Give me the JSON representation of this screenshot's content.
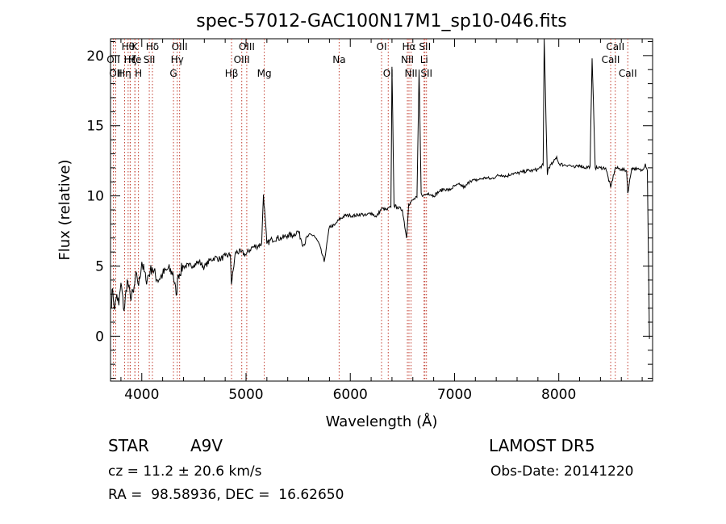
{
  "chart_data": {
    "type": "line",
    "title": "spec-57012-GAC100N17M1_sp10-046.fits",
    "xlabel": "Wavelength (Å)",
    "ylabel": "Flux (relative)",
    "xlim": [
      3700,
      8900
    ],
    "ylim": [
      -3.2,
      21.2
    ],
    "xticks": [
      {
        "value": 4000,
        "label": "4000"
      },
      {
        "value": 5000,
        "label": "5000"
      },
      {
        "value": 6000,
        "label": "6000"
      },
      {
        "value": 7000,
        "label": "7000"
      },
      {
        "value": 8000,
        "label": "8000"
      }
    ],
    "yticks": [
      {
        "value": 0,
        "label": "0"
      },
      {
        "value": 5,
        "label": "5"
      },
      {
        "value": 10,
        "label": "10"
      },
      {
        "value": 15,
        "label": "15"
      },
      {
        "value": 20,
        "label": "20"
      }
    ],
    "grid": false,
    "line_color": "#000000",
    "marker_color": "#c0392b",
    "series": [
      {
        "x": [
          3705,
          3720,
          3740,
          3760,
          3780,
          3800,
          3830,
          3860,
          3890,
          3920,
          3950,
          3970,
          4000,
          4040,
          4080,
          4100,
          4150,
          4200,
          4250,
          4300,
          4330,
          4350,
          4400,
          4450,
          4500,
          4550,
          4600,
          4650,
          4700,
          4750,
          4800,
          4850,
          4860,
          4900,
          4950,
          5000,
          5050,
          5100,
          5150,
          5167,
          5200,
          5250,
          5300,
          5350,
          5400,
          5450,
          5500,
          5550,
          5600,
          5650,
          5700,
          5750,
          5800,
          5850,
          5890,
          5950,
          6000,
          6050,
          6100,
          6150,
          6200,
          6250,
          6300,
          6350,
          6390,
          6400,
          6420,
          6450,
          6500,
          6540,
          6560,
          6600,
          6640,
          6660,
          6680,
          6700,
          6750,
          6800,
          6850,
          6900,
          6950,
          7000,
          7050,
          7100,
          7150,
          7200,
          7250,
          7300,
          7350,
          7400,
          7450,
          7500,
          7550,
          7600,
          7650,
          7700,
          7750,
          7800,
          7850,
          7860,
          7890,
          7900,
          7950,
          7980,
          8000,
          8050,
          8100,
          8150,
          8200,
          8250,
          8300,
          8320,
          8350,
          8400,
          8450,
          8498,
          8542,
          8600,
          8650,
          8662,
          8700,
          8750,
          8800,
          8830,
          8850,
          8870
        ],
        "y": [
          2.0,
          3.4,
          1.9,
          3.0,
          2.2,
          3.8,
          1.8,
          4.0,
          2.8,
          3.1,
          4.5,
          3.6,
          5.3,
          4.0,
          4.6,
          4.9,
          4.0,
          4.4,
          4.8,
          4.5,
          2.9,
          4.4,
          5.0,
          5.0,
          5.1,
          5.3,
          4.9,
          5.4,
          5.6,
          5.5,
          5.7,
          5.8,
          3.7,
          6.0,
          6.0,
          5.8,
          6.3,
          6.4,
          6.6,
          10.1,
          6.6,
          6.9,
          7.0,
          7.0,
          7.2,
          7.2,
          7.5,
          6.5,
          7.2,
          7.2,
          6.6,
          5.3,
          7.8,
          7.9,
          8.3,
          8.6,
          8.6,
          8.6,
          8.7,
          8.6,
          8.8,
          8.5,
          9.1,
          9.0,
          9.2,
          19.2,
          9.3,
          9.2,
          9.0,
          7.0,
          9.4,
          9.7,
          9.9,
          19.0,
          10.2,
          10.0,
          10.2,
          10.0,
          10.3,
          10.5,
          10.4,
          10.7,
          10.8,
          10.6,
          11.1,
          11.1,
          11.2,
          11.3,
          11.2,
          11.4,
          11.5,
          11.4,
          11.6,
          11.6,
          11.7,
          11.8,
          11.8,
          11.9,
          12.2,
          21.2,
          11.5,
          12.0,
          12.4,
          12.8,
          12.3,
          12.2,
          12.2,
          12.0,
          12.2,
          12.0,
          12.1,
          19.8,
          12.0,
          12.0,
          12.0,
          10.6,
          12.0,
          11.9,
          11.8,
          10.2,
          12.0,
          11.9,
          11.8,
          12.3,
          11.8,
          -0.2
        ]
      }
    ],
    "lines": [
      {
        "wave": 3727,
        "label": "OII",
        "row": 2
      },
      {
        "wave": 3750,
        "label": "OII",
        "row": 3
      },
      {
        "wave": 3835,
        "label": "Hη",
        "row": 3
      },
      {
        "wave": 3889,
        "label": "Hζ",
        "row": 2
      },
      {
        "wave": 3889,
        "label": "Hε",
        "row": 2
      },
      {
        "wave": 3869,
        "label": "Hθ",
        "row": 1
      },
      {
        "wave": 3934,
        "label": "K",
        "row": 1
      },
      {
        "wave": 3934,
        "label": "He",
        "row": 2
      },
      {
        "wave": 3968,
        "label": "H",
        "row": 3
      },
      {
        "wave": 4072,
        "label": "SII",
        "row": 2
      },
      {
        "wave": 4102,
        "label": "Hδ",
        "row": 1
      },
      {
        "wave": 4304,
        "label": "G",
        "row": 3
      },
      {
        "wave": 4340,
        "label": "Hγ",
        "row": 2
      },
      {
        "wave": 4363,
        "label": "OIII",
        "row": 1
      },
      {
        "wave": 4861,
        "label": "Hβ",
        "row": 3
      },
      {
        "wave": 4959,
        "label": "OIII",
        "row": 2
      },
      {
        "wave": 5007,
        "label": "OIII",
        "row": 1
      },
      {
        "wave": 5175,
        "label": "Mg",
        "row": 3
      },
      {
        "wave": 5893,
        "label": "Na",
        "row": 2
      },
      {
        "wave": 6300,
        "label": "OI",
        "row": 1
      },
      {
        "wave": 6364,
        "label": "OI",
        "row": 3
      },
      {
        "wave": 6548,
        "label": "NII",
        "row": 2
      },
      {
        "wave": 6563,
        "label": "Hα",
        "row": 1
      },
      {
        "wave": 6583,
        "label": "NII",
        "row": 3
      },
      {
        "wave": 6708,
        "label": "Li",
        "row": 2
      },
      {
        "wave": 6716,
        "label": "SII",
        "row": 1
      },
      {
        "wave": 6731,
        "label": "SII",
        "row": 3
      },
      {
        "wave": 8498,
        "label": "CaII",
        "row": 2
      },
      {
        "wave": 8542,
        "label": "CaII",
        "row": 1
      },
      {
        "wave": 8662,
        "label": "CaII",
        "row": 3
      }
    ]
  },
  "info": {
    "class_label": "STAR",
    "subclass": "A9V",
    "survey": "LAMOST DR5",
    "cz": "cz = 11.2 ± 20.6 km/s",
    "obs_date": "Obs-Date: 20141220",
    "radec": "RA =  98.58936, DEC =  16.62650"
  }
}
